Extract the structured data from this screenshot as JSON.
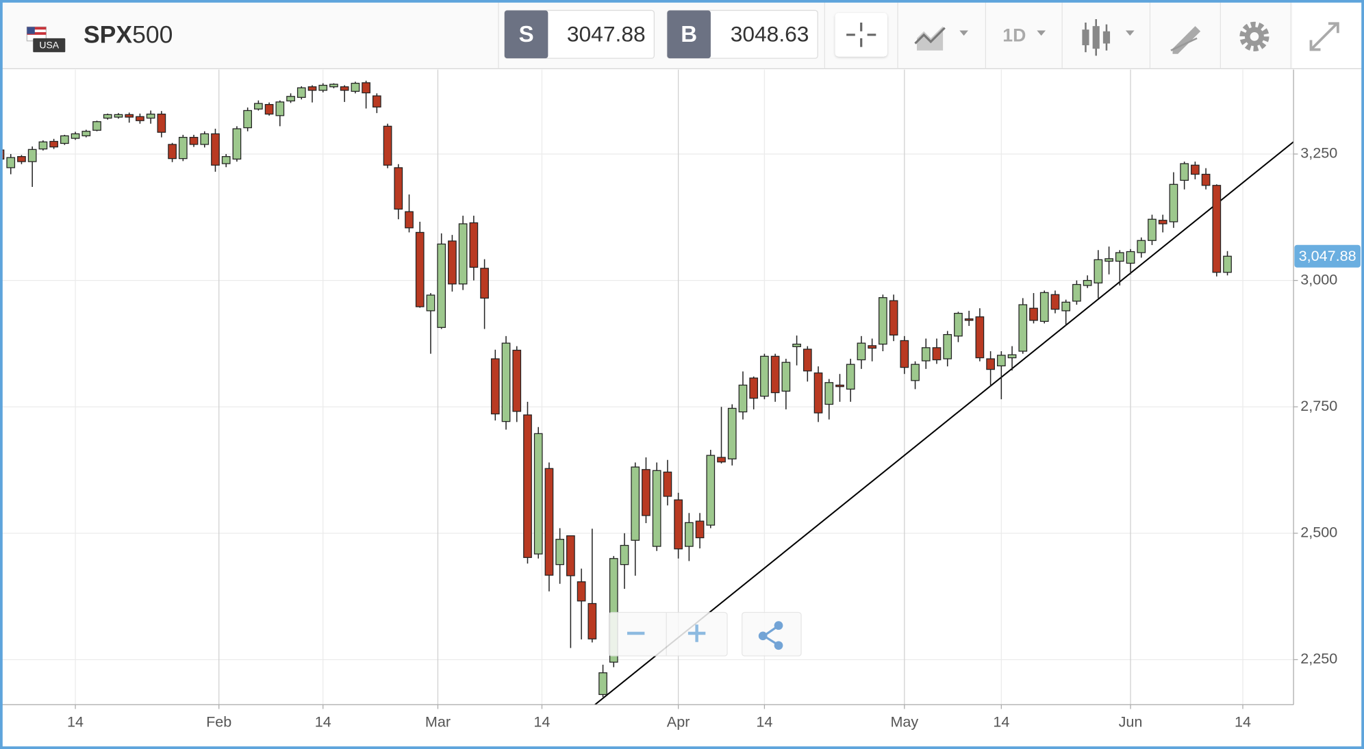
{
  "toolbar": {
    "flag_label": "USA",
    "symbol": "SPX",
    "symbol_suffix": "500",
    "sell_label": "S",
    "sell_price": 3047.88,
    "buy_label": "B",
    "buy_price": 3048.63,
    "timeframe": "1D"
  },
  "chart_data": {
    "type": "candlestick",
    "x": [
      "Jan 3",
      "Jan 6",
      "Jan 7",
      "Jan 8",
      "Jan 9",
      "Jan 10",
      "Jan 13",
      "Jan 14",
      "Jan 15",
      "Jan 16",
      "Jan 17",
      "Jan 20",
      "Jan 21",
      "Jan 22",
      "Jan 23",
      "Jan 24",
      "Jan 27",
      "Jan 28",
      "Jan 29",
      "Jan 30",
      "Jan 31",
      "Feb 3",
      "Feb 4",
      "Feb 5",
      "Feb 6",
      "Feb 7",
      "Feb 10",
      "Feb 11",
      "Feb 12",
      "Feb 13",
      "Feb 14",
      "Feb 17",
      "Feb 18",
      "Feb 19",
      "Feb 20",
      "Feb 21",
      "Feb 24",
      "Feb 25",
      "Feb 26",
      "Feb 27",
      "Feb 28",
      "Mar 2",
      "Mar 3",
      "Mar 4",
      "Mar 5",
      "Mar 6",
      "Mar 9",
      "Mar 10",
      "Mar 11",
      "Mar 12",
      "Mar 13",
      "Mar 16",
      "Mar 17",
      "Mar 18",
      "Mar 19",
      "Mar 20",
      "Mar 23",
      "Mar 24",
      "Mar 25",
      "Mar 26",
      "Mar 27",
      "Mar 30",
      "Mar 31",
      "Apr 1",
      "Apr 2",
      "Apr 3",
      "Apr 6",
      "Apr 7",
      "Apr 8",
      "Apr 9",
      "Apr 13",
      "Apr 14",
      "Apr 15",
      "Apr 16",
      "Apr 17",
      "Apr 20",
      "Apr 21",
      "Apr 22",
      "Apr 23",
      "Apr 24",
      "Apr 27",
      "Apr 28",
      "Apr 29",
      "Apr 30",
      "May 1",
      "May 4",
      "May 5",
      "May 6",
      "May 7",
      "May 8",
      "May 11",
      "May 12",
      "May 13",
      "May 14",
      "May 15",
      "May 18",
      "May 19",
      "May 20",
      "May 21",
      "May 22",
      "May 25",
      "May 26",
      "May 27",
      "May 28",
      "May 29",
      "Jun 1",
      "Jun 2",
      "Jun 3",
      "Jun 4",
      "Jun 5",
      "Jun 8",
      "Jun 9",
      "Jun 10",
      "Jun 11",
      "Jun 12"
    ],
    "open": [
      3258,
      3223,
      3245,
      3235,
      3260,
      3275,
      3271,
      3281,
      3286,
      3297,
      3321,
      3323,
      3328,
      3324,
      3321,
      3329,
      3269,
      3241,
      3283,
      3269,
      3290,
      3231,
      3240,
      3302,
      3339,
      3348,
      3326,
      3355,
      3362,
      3383,
      3376,
      3383,
      3383,
      3374,
      3391,
      3365,
      3305,
      3223,
      3136,
      3095,
      2940,
      2907,
      3078,
      2993,
      3114,
      3024,
      2845,
      2721,
      2862,
      2734,
      2459,
      2628,
      2438,
      2495,
      2404,
      2361,
      2181,
      2245,
      2438,
      2486,
      2626,
      2474,
      2621,
      2566,
      2474,
      2524,
      2516,
      2650,
      2647,
      2740,
      2807,
      2771,
      2850,
      2781,
      2869,
      2864,
      2817,
      2755,
      2793,
      2785,
      2843,
      2871,
      2874,
      2960,
      2881,
      2802,
      2841,
      2867,
      2845,
      2890,
      2924,
      2928,
      2845,
      2831,
      2847,
      2860,
      2945,
      2919,
      2972,
      2940,
      2959,
      2990,
      2995,
      3038,
      3038,
      3034,
      3055,
      3079,
      3119,
      3116,
      3198,
      3228,
      3210,
      3188,
      3016
    ],
    "high": [
      3262,
      3250,
      3248,
      3265,
      3277,
      3280,
      3288,
      3294,
      3298,
      3316,
      3330,
      3331,
      3332,
      3330,
      3336,
      3335,
      3272,
      3288,
      3288,
      3295,
      3300,
      3250,
      3305,
      3342,
      3356,
      3352,
      3356,
      3370,
      3384,
      3386,
      3390,
      3390,
      3386,
      3393,
      3395,
      3370,
      3310,
      3230,
      3170,
      3116,
      2975,
      3093,
      3090,
      3128,
      3128,
      3042,
      2863,
      2890,
      2870,
      2760,
      2710,
      2640,
      2510,
      2495,
      2430,
      2509,
      2240,
      2455,
      2500,
      2640,
      2650,
      2640,
      2645,
      2580,
      2540,
      2540,
      2665,
      2750,
      2755,
      2820,
      2810,
      2855,
      2855,
      2845,
      2891,
      2870,
      2830,
      2805,
      2815,
      2845,
      2890,
      2885,
      2972,
      2972,
      2890,
      2840,
      2885,
      2885,
      2900,
      2938,
      2940,
      2945,
      2860,
      2860,
      2870,
      2965,
      2975,
      2980,
      2980,
      2962,
      3000,
      3010,
      3060,
      3067,
      3060,
      3062,
      3085,
      3130,
      3130,
      3214,
      3235,
      3235,
      3222,
      3190,
      3058
    ],
    "low": [
      3238,
      3210,
      3230,
      3185,
      3257,
      3260,
      3268,
      3278,
      3283,
      3295,
      3318,
      3320,
      3312,
      3310,
      3310,
      3283,
      3234,
      3236,
      3264,
      3263,
      3215,
      3224,
      3235,
      3295,
      3336,
      3326,
      3305,
      3351,
      3358,
      3352,
      3372,
      3380,
      3353,
      3370,
      3340,
      3331,
      3222,
      3121,
      3095,
      2946,
      2855,
      2904,
      2978,
      2981,
      3000,
      2904,
      2723,
      2705,
      2720,
      2440,
      2450,
      2385,
      2400,
      2273,
      2290,
      2284,
      2176,
      2235,
      2390,
      2416,
      2520,
      2465,
      2555,
      2450,
      2445,
      2470,
      2510,
      2638,
      2634,
      2725,
      2745,
      2765,
      2760,
      2745,
      2832,
      2800,
      2720,
      2725,
      2760,
      2760,
      2825,
      2840,
      2860,
      2880,
      2815,
      2785,
      2825,
      2835,
      2830,
      2878,
      2910,
      2840,
      2790,
      2765,
      2822,
      2855,
      2915,
      2915,
      2935,
      2910,
      2952,
      2985,
      2965,
      3012,
      2990,
      3012,
      3045,
      3070,
      3095,
      3104,
      3180,
      3200,
      3180,
      3008,
      3010
    ],
    "close": [
      3240,
      3243,
      3235,
      3259,
      3274,
      3264,
      3286,
      3290,
      3295,
      3314,
      3328,
      3328,
      3323,
      3316,
      3329,
      3293,
      3241,
      3283,
      3269,
      3290,
      3228,
      3245,
      3300,
      3336,
      3350,
      3329,
      3353,
      3364,
      3381,
      3376,
      3386,
      3388,
      3376,
      3390,
      3371,
      3343,
      3228,
      3141,
      3104,
      2948,
      2971,
      3072,
      2993,
      3112,
      3026,
      2965,
      2736,
      2876,
      2741,
      2452,
      2697,
      2417,
      2488,
      2416,
      2366,
      2291,
      2224,
      2450,
      2476,
      2631,
      2535,
      2624,
      2573,
      2469,
      2521,
      2491,
      2654,
      2641,
      2747,
      2793,
      2767,
      2850,
      2778,
      2838,
      2874,
      2821,
      2738,
      2798,
      2790,
      2834,
      2876,
      2866,
      2966,
      2892,
      2828,
      2834,
      2867,
      2843,
      2893,
      2935,
      2921,
      2847,
      2824,
      2852,
      2853,
      2952,
      2921,
      2976,
      2943,
      2957,
      2992,
      3000,
      3041,
      3043,
      3055,
      3057,
      3079,
      3121,
      3112,
      3190,
      3231,
      3210,
      3188,
      3016,
      3047.88
    ],
    "up_color": "#9dc88d",
    "down_color": "#b93a22",
    "ylim": [
      2161,
      3417
    ],
    "yticks": [
      {
        "value": 2250,
        "label": "2,250"
      },
      {
        "value": 2500,
        "label": "2,500"
      },
      {
        "value": 2750,
        "label": "2,750"
      },
      {
        "value": 3000,
        "label": "3,000"
      },
      {
        "value": 3250,
        "label": "3,250"
      }
    ],
    "xticks": [
      {
        "value": "Jan 14",
        "label": "14"
      },
      {
        "value": "Feb 1",
        "label": "Feb"
      },
      {
        "value": "Feb 14",
        "label": "14"
      },
      {
        "value": "Mar 1",
        "label": "Mar"
      },
      {
        "value": "Mar 14",
        "label": "14"
      },
      {
        "value": "Apr 1",
        "label": "Apr"
      },
      {
        "value": "Apr 14",
        "label": "14"
      },
      {
        "value": "May 1",
        "label": "May"
      },
      {
        "value": "May 14",
        "label": "14"
      },
      {
        "value": "Jun 1",
        "label": "Jun"
      },
      {
        "value": "Jun 14",
        "label": "14"
      }
    ],
    "grid": true,
    "last_price": {
      "value": 3047.88,
      "label": "3,047.88"
    }
  }
}
